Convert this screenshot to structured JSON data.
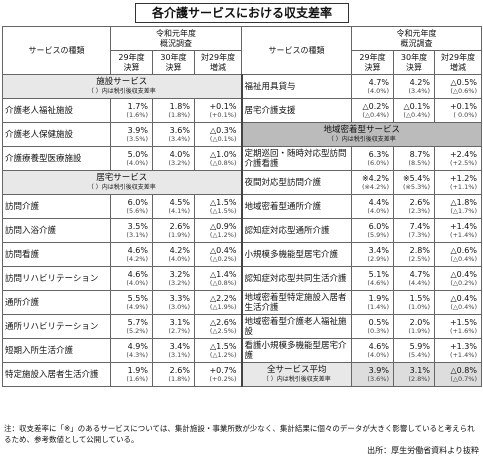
{
  "title": "各介護サービスにおける収支差率",
  "header": {
    "service": "サービスの種類",
    "survey": [
      "令和元年度",
      "概況調査"
    ],
    "y29": [
      "29年度",
      "決算"
    ],
    "y30": [
      "30年度",
      "決算"
    ],
    "diff": [
      "対29年度",
      "増減"
    ]
  },
  "table": {
    "left": [
      {
        "section": "施設サービス",
        "note": "（ ）内は税引後収支差率"
      },
      {
        "name": "介護老人福祉施設",
        "cells": [
          {
            "main": "1.7%",
            "sub": "(1.6%)"
          },
          {
            "main": "1.8%",
            "sub": "(1.8%)"
          },
          {
            "main": "+0.1%",
            "sub": "(+0.1%)"
          }
        ]
      },
      {
        "name": "介護老人保健施設",
        "cells": [
          {
            "main": "3.9%",
            "sub": "(3.5%)"
          },
          {
            "main": "3.6%",
            "sub": "(3.4%)"
          },
          {
            "main": "△0.3%",
            "sub": "(△0.1%)"
          }
        ]
      },
      {
        "name": "介護療養型医療施設",
        "cells": [
          {
            "main": "5.0%",
            "sub": "(4.0%)"
          },
          {
            "main": "4.0%",
            "sub": "(3.2%)"
          },
          {
            "main": "△1.0%",
            "sub": "(△0.8%)"
          }
        ]
      },
      {
        "section": "居宅サービス",
        "note": "（ ）内は税引後収支差率"
      },
      {
        "name": "訪問介護",
        "cells": [
          {
            "main": "6.0%",
            "sub": "(5.6%)"
          },
          {
            "main": "4.5%",
            "sub": "(4.1%)"
          },
          {
            "main": "△1.5%",
            "sub": "(△1.5%)"
          }
        ]
      },
      {
        "name": "訪問入浴介護",
        "cells": [
          {
            "main": "3.5%",
            "sub": "(3.1%)"
          },
          {
            "main": "2.6%",
            "sub": "(1.9%)"
          },
          {
            "main": "△0.9%",
            "sub": "(△1.2%)"
          }
        ]
      },
      {
        "name": "訪問看護",
        "cells": [
          {
            "main": "4.6%",
            "sub": "(4.2%)"
          },
          {
            "main": "4.2%",
            "sub": "(4.0%)"
          },
          {
            "main": "△0.4%",
            "sub": "(△0.2%)"
          }
        ]
      },
      {
        "name": "訪問リハビリテーション",
        "cells": [
          {
            "main": "4.6%",
            "sub": "(4.0%)"
          },
          {
            "main": "3.2%",
            "sub": "(3.2%)"
          },
          {
            "main": "△1.4%",
            "sub": "(△0.8%)"
          }
        ]
      },
      {
        "name": "通所介護",
        "cells": [
          {
            "main": "5.5%",
            "sub": "(4.9%)"
          },
          {
            "main": "3.3%",
            "sub": "(3.0%)"
          },
          {
            "main": "△2.2%",
            "sub": "(△1.9%)"
          }
        ]
      },
      {
        "name": "通所リハビリテーション",
        "cells": [
          {
            "main": "5.7%",
            "sub": "(5.2%)"
          },
          {
            "main": "3.1%",
            "sub": "(2.7%)"
          },
          {
            "main": "△2.6%",
            "sub": "(△2.5%)"
          }
        ]
      },
      {
        "name": "短期入所生活介護",
        "cells": [
          {
            "main": "4.9%",
            "sub": "(4.3%)"
          },
          {
            "main": "3.4%",
            "sub": "(3.1%)"
          },
          {
            "main": "△1.5%",
            "sub": "(△1.2%)"
          }
        ]
      },
      {
        "name": "特定施設入居者生活介護",
        "cells": [
          {
            "main": "1.9%",
            "sub": "(1.6%)"
          },
          {
            "main": "2.6%",
            "sub": "(1.8%)"
          },
          {
            "main": "+0.7%",
            "sub": "(+0.2%)"
          }
        ]
      }
    ],
    "right": [
      {
        "name": "福祉用具貸与",
        "cells": [
          {
            "main": "4.7%",
            "sub": "(4.0%)"
          },
          {
            "main": "4.2%",
            "sub": "(3.4%)"
          },
          {
            "main": "△0.5%",
            "sub": "(△0.6%)"
          }
        ]
      },
      {
        "name": "居宅介護支援",
        "cells": [
          {
            "main": "△0.2%",
            "sub": "(△0.4%)"
          },
          {
            "main": "△0.1%",
            "sub": "(△0.4%)"
          },
          {
            "main": "+0.1%",
            "sub": "( 0.0%)"
          }
        ]
      },
      {
        "section": "地域密着型サービス",
        "note": "（ ）内は税引後収支差率"
      },
      {
        "name": "定期巡回・随時対応型訪問介護看護",
        "cells": [
          {
            "main": "6.3%",
            "sub": "(6.0%)"
          },
          {
            "main": "8.7%",
            "sub": "(8.5%)"
          },
          {
            "main": "+2.4%",
            "sub": "(+2.5%)"
          }
        ]
      },
      {
        "name": "夜間対応型訪問介護",
        "cells": [
          {
            "main": "※4.2%",
            "sub": "(※4.2%)"
          },
          {
            "main": "※5.4%",
            "sub": "(※5.3%)"
          },
          {
            "main": "+1.2%",
            "sub": "(+1.1%)"
          }
        ]
      },
      {
        "name": "地域密着型通所介護",
        "cells": [
          {
            "main": "4.4%",
            "sub": "(4.0%)"
          },
          {
            "main": "2.6%",
            "sub": "(2.3%)"
          },
          {
            "main": "△1.8%",
            "sub": "(△1.7%)"
          }
        ]
      },
      {
        "name": "認知症対応型通所介護",
        "cells": [
          {
            "main": "6.0%",
            "sub": "(5.9%)"
          },
          {
            "main": "7.4%",
            "sub": "(7.3%)"
          },
          {
            "main": "+1.4%",
            "sub": "(+1.4%)"
          }
        ]
      },
      {
        "name": "小規模多機能型居宅介護",
        "cells": [
          {
            "main": "3.4%",
            "sub": "(2.9%)"
          },
          {
            "main": "2.8%",
            "sub": "(2.5%)"
          },
          {
            "main": "△0.6%",
            "sub": "(△0.4%)"
          }
        ]
      },
      {
        "name": "認知症対応型共同生活介護",
        "cells": [
          {
            "main": "5.1%",
            "sub": "(4.6%)"
          },
          {
            "main": "4.7%",
            "sub": "(4.4%)"
          },
          {
            "main": "△0.4%",
            "sub": "(△0.2%)"
          }
        ]
      },
      {
        "name": "地域密着型特定施設入居者生活介護",
        "cells": [
          {
            "main": "1.9%",
            "sub": "(1.4%)"
          },
          {
            "main": "1.5%",
            "sub": "(1.0%)"
          },
          {
            "main": "△0.4%",
            "sub": "(△0.4%)"
          }
        ]
      },
      {
        "name": "地域密着型介護老人福祉施設",
        "cells": [
          {
            "main": "0.5%",
            "sub": "(0.3%)"
          },
          {
            "main": "2.0%",
            "sub": "(1.9%)"
          },
          {
            "main": "+1.5%",
            "sub": "(+1.6%)"
          }
        ]
      },
      {
        "name": "看護小規模多機能型居宅介護",
        "cells": [
          {
            "main": "4.6%",
            "sub": "(4.0%)"
          },
          {
            "main": "5.9%",
            "sub": "(5.4%)"
          },
          {
            "main": "+1.3%",
            "sub": "(+1.4%)"
          }
        ]
      },
      {
        "summary": "全サービス平均",
        "note": "（ ）内は税引後収支差率",
        "cells": [
          {
            "main": "3.9%",
            "sub": "(3.6%)"
          },
          {
            "main": "3.1%",
            "sub": "(2.8%)"
          },
          {
            "main": "△0.8%",
            "sub": "(△0.7%)"
          }
        ]
      }
    ]
  },
  "footer": {
    "note": "注：収支差率に「※」のあるサービスについては、集計施設・事業所数が少なく、集計結果に個々のデータが大きく影響していると考えられるため、参考数値として公開している。",
    "source": "出所：厚生労働省資料より抜粋"
  }
}
